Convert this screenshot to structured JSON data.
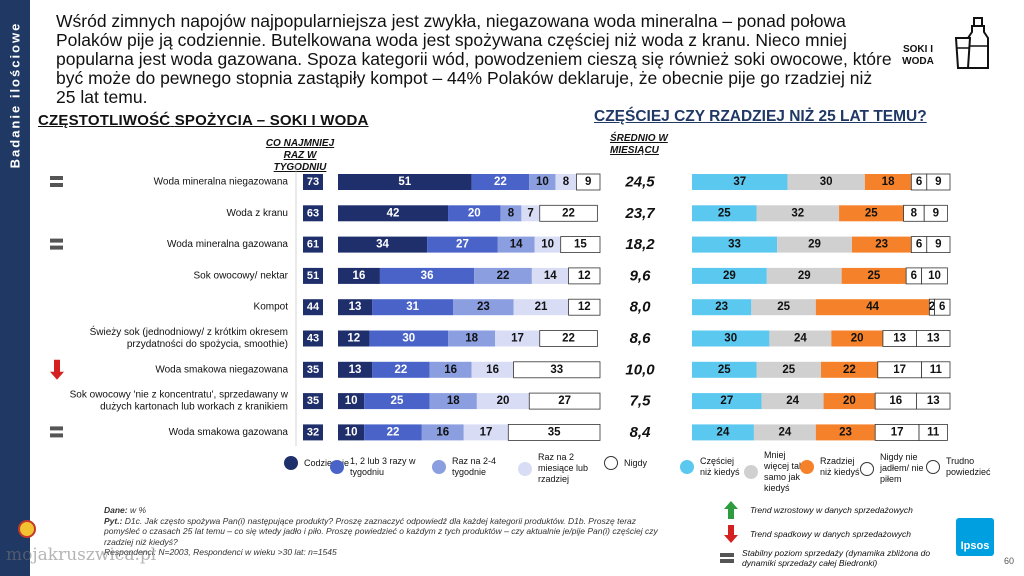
{
  "sidebar": {
    "label": "Badanie ilościowe"
  },
  "intro": "Wśród zimnych napojów najpopularniejsza jest zwykła, niegazowana woda mineralna – ponad połowa Polaków pije ją codziennie. Butelkowana woda jest spożywana częściej niż woda z kranu. Nieco mniej popularna jest woda gazowana. Spoza kategorii wód, powodzeniem cieszą się również soki owocowe, które być może do pewnego stopnia zastąpiły kompot – 44% Polaków deklaruje, że obecnie pije go rzadziej niż 25 lat temu.",
  "category_badge": "SOKI I WODA",
  "left_title_a": "CZĘSTOTLIWOŚĆ",
  "left_title_b": "SPOŻYCIA – SOKI I WODA",
  "right_title": "CZĘŚCIEJ CZY RZADZIEJ NIŻ 25 LAT TEMU?",
  "header_weekly": "CO NAJMNIEJ RAZ W TYGODNIU",
  "header_avg": "ŚREDNIO W MIESIĄCU",
  "colors": {
    "daily": "#1f2f6b",
    "weekly13": "#4a63c8",
    "weekly24": "#8a9ee0",
    "monthly": "#d8ddf5",
    "never": "#ffffff",
    "more": "#5bc8ef",
    "same": "#d0d0d0",
    "less": "#f5822a",
    "never_r": "#ffffff",
    "hard": "#ffffff",
    "sidebar": "#1f3864",
    "trend_up": "#2e9b3e",
    "trend_down": "#d42020",
    "trend_stable": "#555555"
  },
  "chart_data": [
    {
      "type": "bar",
      "stacked": true,
      "orientation": "horizontal",
      "categories": [
        "Woda mineralna niegazowana",
        "Woda z kranu",
        "Woda mineralna gazowana",
        "Sok owocowy/ nektar",
        "Kompot",
        "Świeży sok (jednodniowy/ z krótkim okresem przydatności do spożycia, smoothie)",
        "Woda smakowa niegazowana",
        "Sok owocowy 'nie z koncentratu', sprzedawany w dużych kartonach lub workach z kranikiem",
        "Woda smakowa gazowana"
      ],
      "trend": [
        "stable",
        "none",
        "stable",
        "none",
        "none",
        "none",
        "down",
        "none",
        "stable"
      ],
      "weekly_total": [
        73,
        63,
        61,
        51,
        44,
        43,
        35,
        35,
        32
      ],
      "monthly_avg": [
        "24,5",
        "23,7",
        "18,2",
        "9,6",
        "8,0",
        "8,6",
        "10,0",
        "7,5",
        "8,4"
      ],
      "series": [
        {
          "name": "Codziennie",
          "values": [
            51,
            42,
            34,
            16,
            13,
            12,
            13,
            10,
            10
          ]
        },
        {
          "name": "1, 2 lub 3 razy w tygodniu",
          "values": [
            22,
            20,
            27,
            36,
            31,
            30,
            22,
            25,
            22
          ]
        },
        {
          "name": "Raz na 2-4 tygodnie",
          "values": [
            10,
            8,
            14,
            22,
            23,
            18,
            16,
            18,
            16
          ]
        },
        {
          "name": "Raz na 2 miesiące lub rzadziej",
          "values": [
            8,
            7,
            10,
            14,
            21,
            17,
            16,
            20,
            17
          ]
        },
        {
          "name": "Nigdy",
          "values": [
            9,
            22,
            15,
            12,
            12,
            22,
            33,
            27,
            35
          ]
        }
      ]
    },
    {
      "type": "bar",
      "stacked": true,
      "orientation": "horizontal",
      "title": "CZĘŚCIEJ CZY RZADZIEJ NIŻ 25 LAT TEMU?",
      "categories": [
        "Woda mineralna niegazowana",
        "Woda z kranu",
        "Woda mineralna gazowana",
        "Sok owocowy/ nektar",
        "Kompot",
        "Świeży sok (jednodniowy/ z krótkim okresem przydatności do spożycia, smoothie)",
        "Woda smakowa niegazowana",
        "Sok owocowy 'nie z koncentratu', sprzedawany w dużych kartonach lub workach z kranikiem",
        "Woda smakowa gazowana"
      ],
      "series": [
        {
          "name": "Częściej niż kiedyś",
          "values": [
            37,
            25,
            33,
            29,
            23,
            30,
            25,
            27,
            24
          ]
        },
        {
          "name": "Mniej więcej tak samo jak kiedyś",
          "values": [
            30,
            32,
            29,
            29,
            25,
            24,
            25,
            24,
            24
          ]
        },
        {
          "name": "Rzadziej niż kiedyś",
          "values": [
            18,
            25,
            23,
            25,
            44,
            20,
            22,
            20,
            23
          ]
        },
        {
          "name": "Nigdy nie jadłem/ nie piłem",
          "values": [
            6,
            8,
            6,
            6,
            2,
            13,
            17,
            16,
            17
          ]
        },
        {
          "name": "Trudno powiedzieć",
          "values": [
            9,
            9,
            9,
            10,
            6,
            13,
            11,
            13,
            11
          ]
        }
      ]
    }
  ],
  "legend_left": [
    "Codziennie",
    "1, 2 lub 3 razy w tygodniu",
    "Raz na 2-4 tygodnie",
    "Raz na 2 miesiące lub rzadziej",
    "Nigdy"
  ],
  "legend_right": [
    "Częściej niż kiedyś",
    "Mniej więcej tak samo jak kiedyś",
    "Rzadziej niż kiedyś",
    "Nigdy nie jadłem/ nie piłem",
    "Trudno powiedzieć"
  ],
  "trend_legend": {
    "up": "Trend wzrostowy w danych sprzedażowych",
    "down": "Trend spadkowy w danych sprzedażowych",
    "stable": "Stabilny poziom sprzedaży (dynamika zbliżona do dynamiki sprzedaży całej Biedronki)"
  },
  "notes": {
    "dane_label": "Dane:",
    "dane": "w %",
    "pyt_label": "Pyt.:",
    "pyt": "D1c. Jak często spożywa Pan(i) następujące produkty? Proszę zaznaczyć odpowiedź dla każdej kategorii produktów. D1b. Proszę teraz pomyśleć o czasach 25 lat temu – co się wtedy jadło i piło. Proszę powiedzieć o każdym z tych produktów – czy aktualnie je/pije Pan(i) częściej czy rzadziej niż kiedyś?",
    "base": "Respondenci: N=2003, Respondenci w wieku >30 lat: n=1545"
  },
  "logo": "Ipsos",
  "page_number": "60",
  "watermark": "mojakruszwica.pl"
}
